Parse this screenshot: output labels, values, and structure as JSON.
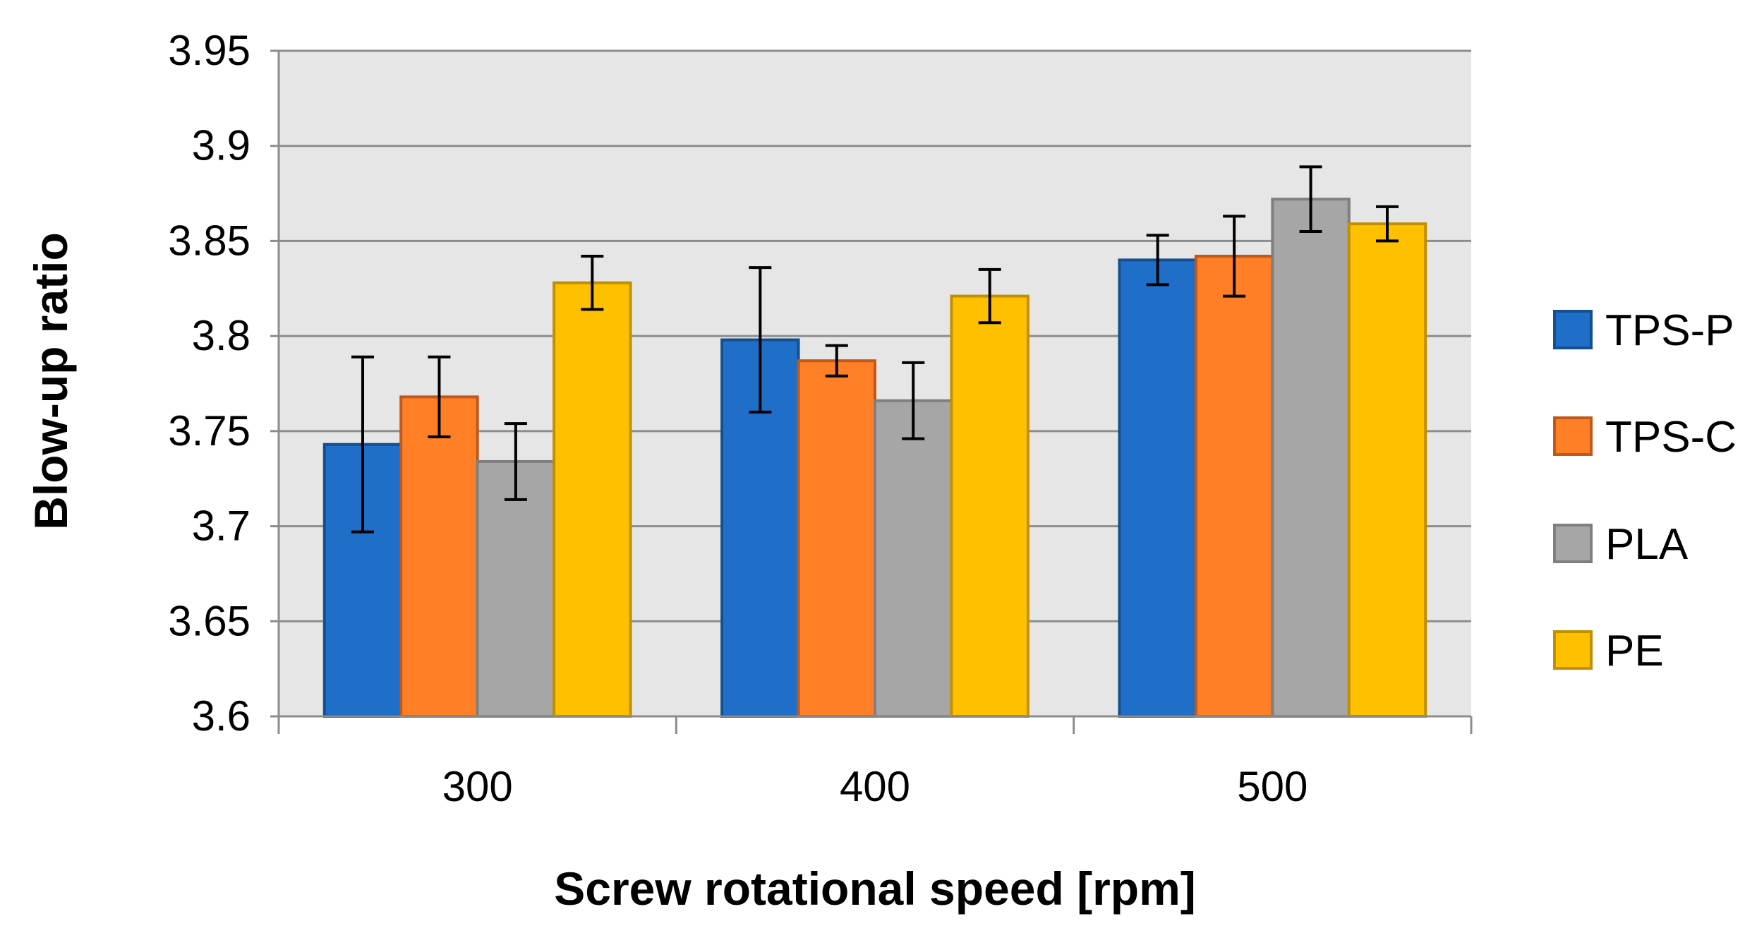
{
  "chart_data": {
    "type": "bar",
    "title": "",
    "xlabel": "Screw rotational speed [rpm]",
    "ylabel": "Blow-up ratio",
    "categories": [
      "300",
      "400",
      "500"
    ],
    "ylim": [
      3.6,
      3.95
    ],
    "yticks": [
      "3.6",
      "3.65",
      "3.7",
      "3.75",
      "3.8",
      "3.85",
      "3.9",
      "3.95"
    ],
    "grid": true,
    "legend_position": "right",
    "series": [
      {
        "name": "TPS-P",
        "color": "#1F6FC9",
        "edge": "#14508F",
        "values": [
          3.743,
          3.798,
          3.84
        ],
        "errors": [
          0.046,
          0.038,
          0.013
        ]
      },
      {
        "name": "TPS-C",
        "color": "#FF7F27",
        "edge": "#C0581A",
        "values": [
          3.768,
          3.787,
          3.842
        ],
        "errors": [
          0.021,
          0.008,
          0.021
        ]
      },
      {
        "name": "PLA",
        "color": "#A6A6A6",
        "edge": "#7F7F7F",
        "values": [
          3.734,
          3.766,
          3.872
        ],
        "errors": [
          0.02,
          0.02,
          0.017
        ]
      },
      {
        "name": "PE",
        "color": "#FFC000",
        "edge": "#C09000",
        "values": [
          3.828,
          3.821,
          3.859
        ],
        "errors": [
          0.014,
          0.014,
          0.009
        ]
      }
    ]
  }
}
